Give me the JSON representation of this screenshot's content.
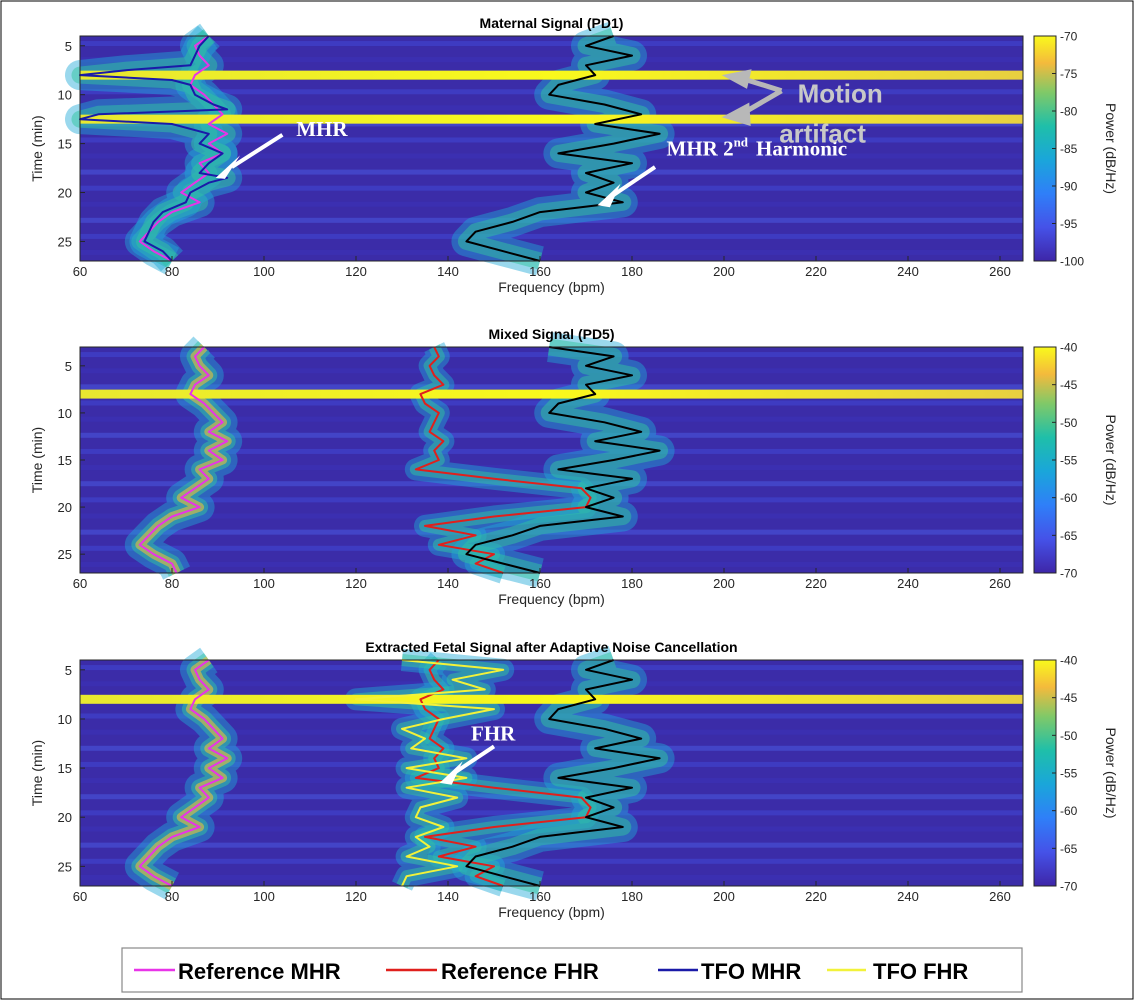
{
  "legend": {
    "items": [
      {
        "label": "Reference MHR",
        "color": "#e834e8"
      },
      {
        "label": "Reference FHR",
        "color": "#e0201c"
      },
      {
        "label": "TFO MHR",
        "color": "#1a1aa8"
      },
      {
        "label": "TFO FHR",
        "color": "#f2f23a"
      }
    ]
  },
  "chart_data": [
    {
      "type": "heatmap",
      "title": "Maternal Signal (PD1)",
      "xlabel": "Frequency (bpm)",
      "ylabel": "Time (min)",
      "colorbar_label": "Power (dB/Hz)",
      "xlim": [
        60,
        265
      ],
      "ylim": [
        27,
        4
      ],
      "xticks": [
        60,
        80,
        100,
        120,
        140,
        160,
        180,
        200,
        220,
        240,
        260
      ],
      "yticks": [
        5,
        10,
        15,
        20,
        25
      ],
      "clim": [
        -100,
        -70
      ],
      "cticks": [
        -70,
        -75,
        -80,
        -85,
        -90,
        -95,
        -100
      ],
      "colormap": "parula",
      "bright_rows_min": [
        8,
        12.5
      ],
      "series": [
        {
          "name": "Reference MHR",
          "time_min": [
            4,
            5,
            6,
            7,
            8,
            9,
            10,
            11,
            12,
            13,
            14,
            15,
            16,
            17,
            18,
            19,
            20,
            21,
            22,
            23,
            24,
            25,
            26,
            27
          ],
          "bpm": [
            88,
            85,
            86,
            88,
            85,
            84,
            87,
            89,
            91,
            88,
            92,
            88,
            91,
            86,
            88,
            85,
            82,
            86,
            80,
            77,
            75,
            73,
            76,
            80
          ]
        },
        {
          "name": "TFO MHR",
          "time_min": [
            4,
            5,
            6,
            7,
            7.5,
            8,
            8.5,
            9,
            10,
            11,
            11.5,
            12,
            12.5,
            13,
            14,
            15,
            16,
            17,
            18,
            18.5,
            19,
            20,
            21,
            22,
            23,
            24,
            25,
            26,
            27
          ],
          "bpm": [
            88,
            86,
            85,
            84,
            70,
            60,
            80,
            84,
            85,
            89,
            92,
            64,
            60,
            80,
            88,
            86,
            91,
            88,
            86,
            92,
            88,
            84,
            83,
            78,
            76,
            75,
            74,
            78,
            80
          ]
        },
        {
          "name": "MHR 2nd Harmonic",
          "time_min": [
            4,
            5,
            6,
            7,
            8,
            9,
            10,
            11,
            12,
            13,
            14,
            15,
            16,
            17,
            18,
            19,
            20,
            21,
            22,
            23,
            24,
            25,
            26,
            27
          ],
          "bpm": [
            176,
            170,
            180,
            170,
            172,
            164,
            162,
            174,
            182,
            172,
            186,
            176,
            164,
            180,
            170,
            176,
            170,
            178,
            160,
            154,
            146,
            144,
            152,
            160
          ]
        }
      ],
      "annotations": [
        {
          "text": "MHR",
          "x": 91,
          "y": 17.5
        },
        {
          "text": "MHR 2",
          "superscript": "nd",
          "text_after": "Harmonic",
          "x": 173,
          "y": 19.5
        },
        {
          "text": "Motion",
          "x": 205,
          "y": 8
        },
        {
          "text": "artifact",
          "x": 199,
          "y": 12
        }
      ]
    },
    {
      "type": "heatmap",
      "title": "Mixed Signal (PD5)",
      "xlabel": "Frequency (bpm)",
      "ylabel": "Time (min)",
      "colorbar_label": "Power (dB/Hz)",
      "xlim": [
        60,
        265
      ],
      "ylim": [
        27,
        3
      ],
      "xticks": [
        60,
        80,
        100,
        120,
        140,
        160,
        180,
        200,
        220,
        240,
        260
      ],
      "yticks": [
        5,
        10,
        15,
        20,
        25
      ],
      "clim": [
        -70,
        -40
      ],
      "cticks": [
        -40,
        -45,
        -50,
        -55,
        -60,
        -65,
        -70
      ],
      "colormap": "parula",
      "bright_rows_min": [
        8
      ],
      "series": [
        {
          "name": "Reference MHR",
          "time_min": [
            3,
            4,
            5,
            6,
            7,
            8,
            9,
            10,
            11,
            12,
            13,
            14,
            15,
            16,
            17,
            18,
            19,
            20,
            21,
            22,
            23,
            24,
            25,
            26,
            27
          ],
          "bpm": [
            87,
            85,
            86,
            88,
            85,
            84,
            87,
            89,
            91,
            88,
            92,
            88,
            91,
            86,
            88,
            85,
            82,
            86,
            80,
            77,
            75,
            73,
            76,
            80,
            81
          ]
        },
        {
          "name": "Reference FHR",
          "time_min": [
            3,
            4,
            5,
            6,
            7,
            8,
            9,
            10,
            11,
            12,
            13,
            14,
            15,
            16,
            17,
            18,
            19,
            20,
            21,
            22,
            23,
            24,
            25,
            26,
            27
          ],
          "bpm": [
            137,
            138,
            136,
            137,
            139,
            134,
            135,
            138,
            137,
            136,
            139,
            137,
            138,
            133,
            150,
            169,
            171,
            170,
            150,
            135,
            146,
            138,
            150,
            146,
            152
          ]
        },
        {
          "name": "MHR 2nd Harmonic",
          "time_min": [
            3,
            4,
            5,
            6,
            7,
            8,
            9,
            10,
            11,
            12,
            13,
            14,
            15,
            16,
            17,
            18,
            19,
            20,
            21,
            22,
            23,
            24,
            25,
            26,
            27
          ],
          "bpm": [
            162,
            176,
            170,
            180,
            170,
            172,
            164,
            162,
            174,
            182,
            172,
            186,
            176,
            164,
            180,
            170,
            176,
            170,
            178,
            160,
            154,
            146,
            144,
            152,
            160
          ]
        }
      ]
    },
    {
      "type": "heatmap",
      "title": "Extracted Fetal Signal after Adaptive Noise Cancellation",
      "xlabel": "Frequency (bpm)",
      "ylabel": "Time (min)",
      "colorbar_label": "Power (dB/Hz)",
      "xlim": [
        60,
        265
      ],
      "ylim": [
        27,
        4
      ],
      "xticks": [
        60,
        80,
        100,
        120,
        140,
        160,
        180,
        200,
        220,
        240,
        260
      ],
      "yticks": [
        5,
        10,
        15,
        20,
        25
      ],
      "clim": [
        -70,
        -40
      ],
      "cticks": [
        -40,
        -45,
        -50,
        -55,
        -60,
        -65,
        -70
      ],
      "colormap": "parula",
      "bright_rows_min": [
        8
      ],
      "series": [
        {
          "name": "Reference MHR",
          "time_min": [
            4,
            5,
            6,
            7,
            8,
            9,
            10,
            11,
            12,
            13,
            14,
            15,
            16,
            17,
            18,
            19,
            20,
            21,
            22,
            23,
            24,
            25,
            26,
            27
          ],
          "bpm": [
            88,
            85,
            86,
            88,
            85,
            84,
            87,
            89,
            91,
            88,
            92,
            88,
            91,
            86,
            88,
            85,
            82,
            86,
            80,
            77,
            75,
            73,
            76,
            80
          ]
        },
        {
          "name": "Reference FHR",
          "time_min": [
            4,
            5,
            6,
            7,
            8,
            9,
            10,
            11,
            12,
            13,
            14,
            15,
            16,
            17,
            18,
            19,
            20,
            21,
            22,
            23,
            24,
            25,
            26,
            27
          ],
          "bpm": [
            138,
            136,
            137,
            139,
            134,
            135,
            138,
            137,
            136,
            139,
            137,
            138,
            133,
            150,
            169,
            171,
            170,
            150,
            135,
            146,
            138,
            150,
            146,
            152
          ]
        },
        {
          "name": "TFO FHR",
          "time_min": [
            4,
            5,
            6,
            7,
            8,
            9,
            10,
            11,
            12,
            13,
            14,
            15,
            16,
            17,
            18,
            19,
            20,
            21,
            22,
            23,
            24,
            25,
            26,
            27
          ],
          "bpm": [
            130,
            152,
            141,
            148,
            120,
            150,
            139,
            130,
            135,
            132,
            144,
            131,
            144,
            131,
            142,
            134,
            133,
            139,
            133,
            136,
            131,
            142,
            131,
            130
          ]
        },
        {
          "name": "MHR 2nd Harmonic",
          "time_min": [
            4,
            5,
            6,
            7,
            8,
            9,
            10,
            11,
            12,
            13,
            14,
            15,
            16,
            17,
            18,
            19,
            20,
            21,
            22,
            23,
            24,
            25,
            26,
            27
          ],
          "bpm": [
            176,
            170,
            180,
            170,
            172,
            164,
            162,
            174,
            182,
            172,
            186,
            176,
            164,
            180,
            170,
            176,
            170,
            178,
            160,
            154,
            146,
            144,
            152,
            160
          ]
        }
      ],
      "annotations": [
        {
          "text": "FHR",
          "x": 141,
          "y": 15.5
        }
      ]
    }
  ]
}
